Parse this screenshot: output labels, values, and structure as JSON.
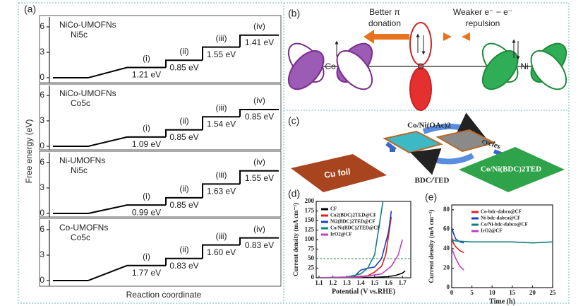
{
  "chart_data": [
    {
      "type": "step",
      "title": "NiCo-UMOFNs",
      "subtitle": "Ni5c",
      "values": [
        1.21,
        0.85,
        1.55,
        1.41
      ],
      "value_labels": [
        "1.21 eV",
        "0.85 eV",
        "1.55 eV",
        "1.41 eV"
      ],
      "step_labels": [
        "(i)",
        "(ii)",
        "(iii)",
        "(iv)"
      ],
      "ylim": [
        -0.7,
        7
      ],
      "yticks": [
        0,
        3,
        6
      ],
      "color": "#000000"
    },
    {
      "type": "step",
      "title": "NiCo-UMOFNs",
      "subtitle": "Co5c",
      "values": [
        1.09,
        0.85,
        1.54,
        0.85
      ],
      "value_labels": [
        "1.09 eV",
        "0.85 eV",
        "1.54 eV",
        "0.85 eV"
      ],
      "step_labels": [
        "(i)",
        "(ii)",
        "(iii)",
        "(iv)"
      ],
      "ylim": [
        -0.7,
        7
      ],
      "yticks": [
        0,
        3,
        6
      ],
      "color": "#000000"
    },
    {
      "type": "step",
      "title": "Ni-UMOFNs",
      "subtitle": "Ni5c",
      "values": [
        0.99,
        0.85,
        1.63,
        1.55
      ],
      "value_labels": [
        "0.99 eV",
        "0.85 eV",
        "1.63 eV",
        "1.55 eV"
      ],
      "step_labels": [
        "(i)",
        "(ii)",
        "(iii)",
        "(iv)"
      ],
      "ylim": [
        -0.7,
        7
      ],
      "yticks": [
        0,
        3,
        6
      ],
      "color": "#000000"
    },
    {
      "type": "step",
      "title": "Co-UMOFNs",
      "subtitle": "Co5c",
      "values": [
        1.77,
        0.83,
        1.6,
        0.83
      ],
      "value_labels": [
        "1.77 eV",
        "0.83 eV",
        "1.60 eV",
        "0.83 eV"
      ],
      "step_labels": [
        "(i)",
        "(ii)",
        "(iii)",
        "(iv)"
      ],
      "ylim": [
        -0.7,
        7
      ],
      "yticks": [
        0,
        3,
        6
      ],
      "color": "#000000"
    },
    {
      "type": "line",
      "panel": "(d)",
      "x_label": "Potential (V vs.RHE)",
      "y_label": "Current density (mA cm⁻²)",
      "xlim": [
        1.08,
        1.76
      ],
      "xticks": [
        1.1,
        1.2,
        1.3,
        1.4,
        1.5,
        1.6,
        1.7
      ],
      "ylim": [
        0,
        200
      ],
      "yticks": [
        0,
        25,
        50,
        75,
        100,
        125,
        150,
        175,
        200
      ],
      "reference_line": 50,
      "reference_color": "#2e8b57",
      "series": [
        {
          "name": "CF",
          "color": "#000000",
          "x": [
            1.1,
            1.3,
            1.5,
            1.6,
            1.65,
            1.7,
            1.72
          ],
          "values": [
            0,
            0,
            1,
            3,
            6,
            12,
            18
          ]
        },
        {
          "name": "Co2(BDC)2TED@CF",
          "color": "#e02020",
          "x": [
            1.1,
            1.3,
            1.45,
            1.5,
            1.55,
            1.58,
            1.6,
            1.62
          ],
          "values": [
            0,
            1,
            5,
            15,
            30,
            60,
            110,
            160
          ]
        },
        {
          "name": "Ni2(BDC)2TED@CF",
          "color": "#2040c0",
          "x": [
            1.1,
            1.35,
            1.4,
            1.45,
            1.5,
            1.55,
            1.6,
            1.62
          ],
          "values": [
            0,
            2,
            20,
            25,
            28,
            50,
            120,
            175
          ]
        },
        {
          "name": "Co/Ni(BDC)2TED@CF",
          "color": "#108080",
          "x": [
            1.1,
            1.3,
            1.4,
            1.45,
            1.5,
            1.53,
            1.56
          ],
          "values": [
            0,
            2,
            10,
            25,
            60,
            130,
            200
          ]
        },
        {
          "name": "IrO2@CF",
          "color": "#c040c0",
          "x": [
            1.1,
            1.4,
            1.55,
            1.62,
            1.67,
            1.7
          ],
          "values": [
            0,
            2,
            10,
            30,
            60,
            100
          ]
        }
      ]
    },
    {
      "type": "line",
      "panel": "(e)",
      "x_label": "Time (h)",
      "y_label": "Current density (mA cm⁻²)",
      "xlim": [
        0,
        25
      ],
      "xticks": [
        0,
        5,
        10,
        15,
        20,
        25
      ],
      "ylim": [
        0,
        85
      ],
      "yticks": [
        0,
        20,
        40,
        60,
        80
      ],
      "series": [
        {
          "name": "Co-bdc-dabco@CF",
          "color": "#e02020",
          "x": [
            0,
            0.5,
            1,
            2,
            3
          ],
          "values": [
            52,
            45,
            42,
            38,
            36
          ]
        },
        {
          "name": "Ni-bdc-dabco@CF",
          "color": "#2040c0",
          "x": [
            0,
            0.5,
            1,
            2,
            3
          ],
          "values": [
            62,
            55,
            50,
            47,
            46
          ]
        },
        {
          "name": "Co/Ni-bdc-dabco@CF",
          "color": "#108080",
          "x": [
            0,
            0.3,
            1,
            5,
            10,
            15,
            20,
            25
          ],
          "values": [
            46,
            49,
            48,
            47,
            47,
            47,
            46,
            47
          ]
        },
        {
          "name": "IrO2@CF",
          "color": "#c040c0",
          "x": [
            0,
            1,
            2,
            3
          ],
          "values": [
            40,
            30,
            22,
            18
          ]
        }
      ]
    }
  ],
  "figure": {
    "a": {
      "label": "(a)",
      "y_label": "Free energy (eV)",
      "x_label": "Reaction coordinate"
    },
    "b": {
      "label": "(b)",
      "left_arrow": [
        "Better π",
        "donation"
      ],
      "right_arrow": [
        "Weaker e⁻ − e⁻",
        "repulsion"
      ],
      "atoms": [
        "Co",
        "O",
        "Ni"
      ]
    },
    "c": {
      "label": "(c)",
      "reagent": "Co/Ni(OAc)2",
      "linker": "BDC/TED",
      "cycles": "cycles",
      "substrate": "Cu foil",
      "product": "Co/Ni(BDC)2TED"
    }
  }
}
